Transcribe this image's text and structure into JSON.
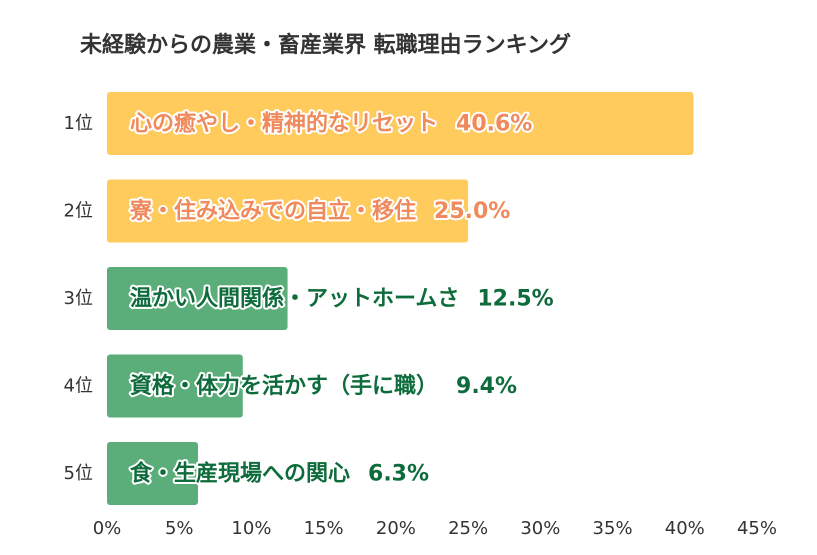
{
  "chart_data": {
    "type": "bar",
    "orientation": "horizontal",
    "title": "未経験からの農業・畜産業界 転職理由ランキング",
    "categories": [
      "1位",
      "2位",
      "3位",
      "4位",
      "5位"
    ],
    "labels": [
      "心の癒やし・精神的なリセット",
      "寮・住み込みでの自立・移住",
      "温かい人間関係・アットホームさ",
      "資格・体力を活かす（手に職）",
      "食・生産現場への関心"
    ],
    "values": [
      40.6,
      25.0,
      12.5,
      9.4,
      6.3
    ],
    "value_labels": [
      "40.6%",
      "25.0%",
      "12.5%",
      "9.4%",
      "6.3%"
    ],
    "xlim": [
      0,
      45
    ],
    "xticks": [
      0,
      5,
      10,
      15,
      20,
      25,
      30,
      35,
      40,
      45
    ],
    "xtick_labels": [
      "0%",
      "5%",
      "10%",
      "15%",
      "20%",
      "25%",
      "30%",
      "35%",
      "40%",
      "45%"
    ],
    "xlabel": "",
    "ylabel": "",
    "grid": false,
    "bar_colors": [
      "#FFCB5C",
      "#FFCB5C",
      "#5BAE7A",
      "#5BAE7A",
      "#5BAE7A"
    ],
    "label_colors": [
      "#F08A5D",
      "#F08A5D",
      "#0E6B3B",
      "#0E6B3B",
      "#0E6B3B"
    ]
  }
}
